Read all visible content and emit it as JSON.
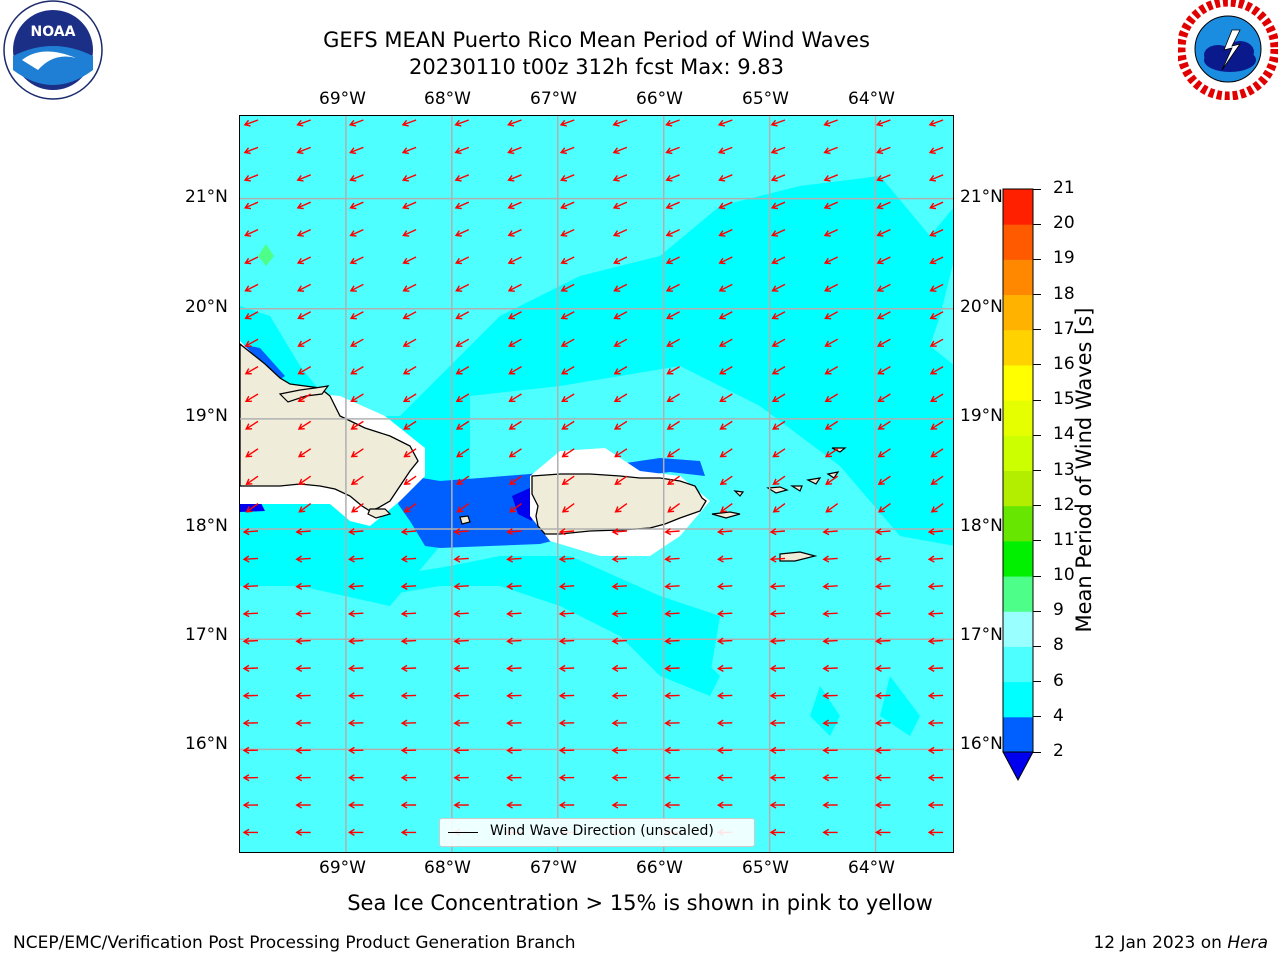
{
  "header": {
    "title_line1": "GEFS MEAN Puerto Rico Mean Period of Wind Waves",
    "title_line2": "20230110 t00z 312h fcst   Max: 9.83"
  },
  "logos": {
    "left": {
      "name": "noaa-logo",
      "text": "NOAA",
      "ring_text": "NATIONAL OCEANIC AND ATMOSPHERIC ADMINISTRATION · U.S. DEPARTMENT OF COMMERCE"
    },
    "right": {
      "name": "nws-logo",
      "ring_text": "NATIONAL WEATHER SERVICE"
    }
  },
  "map": {
    "lon_ticks": [
      "69°W",
      "68°W",
      "67°W",
      "66°W",
      "65°W",
      "64°W"
    ],
    "lat_ticks": [
      "21°N",
      "20°N",
      "19°N",
      "18°N",
      "17°N",
      "16°N"
    ],
    "lon_range": [
      -70.0,
      -63.25
    ],
    "lat_range": [
      15.05,
      21.75
    ],
    "ocean_color": "#00ffff",
    "land_color": "#efecda",
    "arrow_color": "#ff0000",
    "legend_label": "Wind Wave Direction (unscaled)"
  },
  "colorbar": {
    "label": "Mean Period of Wind Waves [s]",
    "tick_labels": [
      "2",
      "4",
      "6",
      "8",
      "9",
      "10",
      "11",
      "12",
      "13",
      "14",
      "15",
      "16",
      "17",
      "18",
      "19",
      "20",
      "21"
    ],
    "levels": [
      2,
      4,
      6,
      8,
      9,
      10,
      11,
      12,
      13,
      14,
      15,
      16,
      17,
      18,
      19,
      20,
      21
    ],
    "colors": [
      "#0060ff",
      "#00ffff",
      "#4dffff",
      "#99ffff",
      "#4dff88",
      "#00f000",
      "#66e600",
      "#b3ee00",
      "#ccff00",
      "#e6ff00",
      "#ffff00",
      "#ffd200",
      "#ffb200",
      "#ff8800",
      "#ff5a00",
      "#ff2000"
    ],
    "under_color": "#0000ee"
  },
  "subtitle": "Sea Ice Concentration > 15% is shown in pink to yellow",
  "footer": {
    "left": "NCEP/EMC/Verification Post Processing Product Generation Branch",
    "right_prefix": "12 Jan 2023 on ",
    "right_host": "Hera"
  }
}
